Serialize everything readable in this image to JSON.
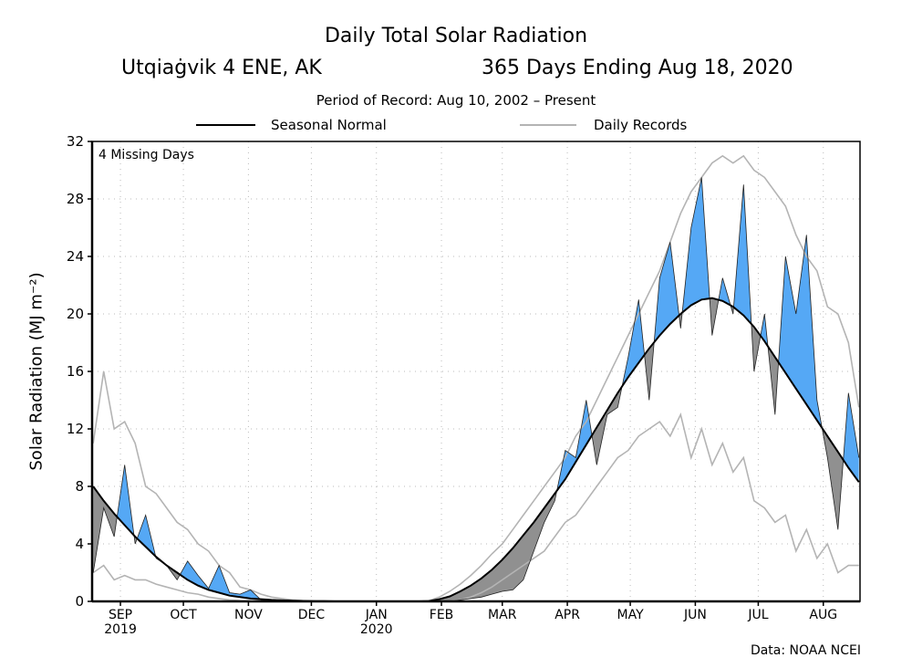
{
  "chart_data": {
    "type": "area",
    "title": "Daily Total Solar Radiation",
    "station": "Utqiaġvik 4 ENE, AK",
    "period_label": "365 Days Ending Aug 18, 2020",
    "period_of_record": "Period of Record: Aug 10, 2002 – Present",
    "annotation": "4 Missing Days",
    "credit": "Data: NOAA NCEI",
    "ylabel": "Solar Radiation (MJ m⁻²)",
    "xlabel": "",
    "ylim": [
      0,
      32
    ],
    "yticks": [
      0,
      4,
      8,
      12,
      16,
      20,
      24,
      28,
      32
    ],
    "xticks": [
      {
        "date": "2019-09-01",
        "label": "SEP",
        "sub": "2019"
      },
      {
        "date": "2019-10-01",
        "label": "OCT",
        "sub": ""
      },
      {
        "date": "2019-11-01",
        "label": "NOV",
        "sub": ""
      },
      {
        "date": "2019-12-01",
        "label": "DEC",
        "sub": ""
      },
      {
        "date": "2020-01-01",
        "label": "JAN",
        "sub": "2020"
      },
      {
        "date": "2020-02-01",
        "label": "FEB",
        "sub": ""
      },
      {
        "date": "2020-03-01",
        "label": "MAR",
        "sub": ""
      },
      {
        "date": "2020-04-01",
        "label": "APR",
        "sub": ""
      },
      {
        "date": "2020-05-01",
        "label": "MAY",
        "sub": ""
      },
      {
        "date": "2020-06-01",
        "label": "JUN",
        "sub": ""
      },
      {
        "date": "2020-07-01",
        "label": "JUL",
        "sub": ""
      },
      {
        "date": "2020-08-01",
        "label": "AUG",
        "sub": ""
      }
    ],
    "xlim": [
      "2019-08-19",
      "2020-08-18"
    ],
    "grid": true,
    "legend": {
      "placement": "top",
      "entries": [
        "Seasonal Normal",
        "Daily Records"
      ]
    },
    "colors": {
      "above_normal": "#55a8f5",
      "below_normal": "#909090",
      "normal": "#000000",
      "records": "#b4b4b4"
    },
    "dates": [
      "2019-08-19",
      "2019-08-24",
      "2019-08-29",
      "2019-09-03",
      "2019-09-08",
      "2019-09-13",
      "2019-09-18",
      "2019-09-23",
      "2019-09-28",
      "2019-10-03",
      "2019-10-08",
      "2019-10-13",
      "2019-10-18",
      "2019-10-23",
      "2019-10-28",
      "2019-11-02",
      "2019-11-07",
      "2019-11-12",
      "2019-11-17",
      "2019-11-22",
      "2019-11-27",
      "2019-12-02",
      "2019-12-07",
      "2019-12-12",
      "2019-12-17",
      "2019-12-22",
      "2019-12-27",
      "2020-01-01",
      "2020-01-06",
      "2020-01-11",
      "2020-01-16",
      "2020-01-21",
      "2020-01-26",
      "2020-01-31",
      "2020-02-05",
      "2020-02-10",
      "2020-02-15",
      "2020-02-20",
      "2020-02-25",
      "2020-03-01",
      "2020-03-06",
      "2020-03-11",
      "2020-03-16",
      "2020-03-21",
      "2020-03-26",
      "2020-03-31",
      "2020-04-05",
      "2020-04-10",
      "2020-04-15",
      "2020-04-20",
      "2020-04-25",
      "2020-04-30",
      "2020-05-05",
      "2020-05-10",
      "2020-05-15",
      "2020-05-20",
      "2020-05-25",
      "2020-05-30",
      "2020-06-04",
      "2020-06-09",
      "2020-06-14",
      "2020-06-19",
      "2020-06-24",
      "2020-06-29",
      "2020-07-04",
      "2020-07-09",
      "2020-07-14",
      "2020-07-19",
      "2020-07-24",
      "2020-07-29",
      "2020-08-03",
      "2020-08-08",
      "2020-08-13",
      "2020-08-18"
    ],
    "series": [
      {
        "name": "Seasonal Normal",
        "values": [
          8.0,
          7.0,
          6.1,
          5.3,
          4.5,
          3.8,
          3.1,
          2.5,
          2.0,
          1.5,
          1.1,
          0.8,
          0.6,
          0.4,
          0.3,
          0.2,
          0.15,
          0.1,
          0.07,
          0.05,
          0.03,
          0.02,
          0.01,
          0,
          0,
          0,
          0,
          0,
          0,
          0,
          0,
          0,
          0.02,
          0.15,
          0.35,
          0.7,
          1.1,
          1.6,
          2.2,
          2.9,
          3.7,
          4.6,
          5.5,
          6.5,
          7.5,
          8.5,
          9.7,
          10.9,
          12.1,
          13.3,
          14.5,
          15.6,
          16.6,
          17.6,
          18.5,
          19.3,
          20.0,
          20.6,
          21.0,
          21.1,
          20.9,
          20.5,
          19.9,
          19.1,
          18.1,
          17.0,
          15.9,
          14.8,
          13.7,
          12.6,
          11.5,
          10.4,
          9.3,
          8.3
        ]
      },
      {
        "name": "Record High",
        "values": [
          11,
          16,
          12,
          12.5,
          11,
          8,
          7.5,
          6.5,
          5.5,
          5,
          4,
          3.5,
          2.5,
          2,
          1,
          0.8,
          0.5,
          0.3,
          0.2,
          0.1,
          0.05,
          0.02,
          0,
          0,
          0,
          0,
          0,
          0,
          0,
          0,
          0,
          0,
          0.05,
          0.3,
          0.7,
          1.2,
          1.8,
          2.5,
          3.3,
          4.0,
          5.0,
          6.0,
          7.0,
          8.0,
          9.0,
          10.0,
          11.5,
          12.5,
          14.0,
          15.5,
          17.0,
          18.5,
          20.0,
          21.5,
          23.0,
          25.0,
          27.0,
          28.5,
          29.5,
          30.5,
          31.0,
          30.5,
          31.0,
          30.0,
          29.5,
          28.5,
          27.5,
          25.5,
          24.0,
          23.0,
          20.5,
          20.0,
          18.0,
          13.5
        ]
      },
      {
        "name": "Record Low",
        "values": [
          2.0,
          2.5,
          1.5,
          1.8,
          1.5,
          1.5,
          1.2,
          1.0,
          0.8,
          0.6,
          0.5,
          0.3,
          0.2,
          0.1,
          0.05,
          0.02,
          0,
          0,
          0,
          0,
          0,
          0,
          0,
          0,
          0,
          0,
          0,
          0,
          0,
          0,
          0,
          0,
          0,
          0,
          0,
          0.1,
          0.3,
          0.6,
          1.0,
          1.5,
          2.0,
          2.5,
          3.0,
          3.5,
          4.5,
          5.5,
          6.0,
          7.0,
          8.0,
          9.0,
          10.0,
          10.5,
          11.5,
          12.0,
          12.5,
          11.5,
          13.0,
          10.0,
          12.0,
          9.5,
          11.0,
          9.0,
          10.0,
          7.0,
          6.5,
          5.5,
          6.0,
          3.5,
          5.0,
          3.0,
          4.0,
          2.0,
          2.5,
          2.5
        ]
      },
      {
        "name": "Observed",
        "values": [
          2.0,
          6.5,
          4.5,
          9.5,
          4.0,
          6.0,
          3.0,
          2.5,
          1.5,
          2.8,
          1.8,
          0.9,
          2.5,
          0.6,
          0.5,
          0.8,
          0.1,
          0.05,
          0.02,
          0,
          0,
          0,
          0,
          0,
          0,
          0,
          0,
          0,
          0,
          0,
          0,
          0,
          0,
          0,
          0,
          0.1,
          0.2,
          0.3,
          0.5,
          0.7,
          0.8,
          1.5,
          3.5,
          5.5,
          7.0,
          10.5,
          10.0,
          14.0,
          9.5,
          13.0,
          13.5,
          17.0,
          21.0,
          14.0,
          22.5,
          25.0,
          19.0,
          26.0,
          29.5,
          18.5,
          22.5,
          20.0,
          29.0,
          16.0,
          20.0,
          13.0,
          24.0,
          20.0,
          25.5,
          14.0,
          10.0,
          5.0,
          14.5,
          10.0
        ]
      }
    ]
  }
}
